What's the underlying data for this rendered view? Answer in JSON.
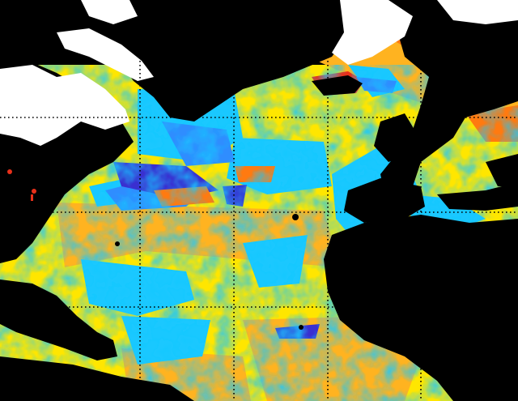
{
  "map": {
    "colors": {
      "land": "#000000",
      "ice": "#ffffff",
      "warm_yellow": "#ffe600",
      "warm_orange": "#ffb320",
      "hot_orange": "#ff7a10",
      "hot_red": "#e8301a",
      "cool_cyan": "#19c8ff",
      "cool_blue": "#2f8dff",
      "cold_indigo": "#3a2fd0",
      "grid": "#000000"
    }
  }
}
